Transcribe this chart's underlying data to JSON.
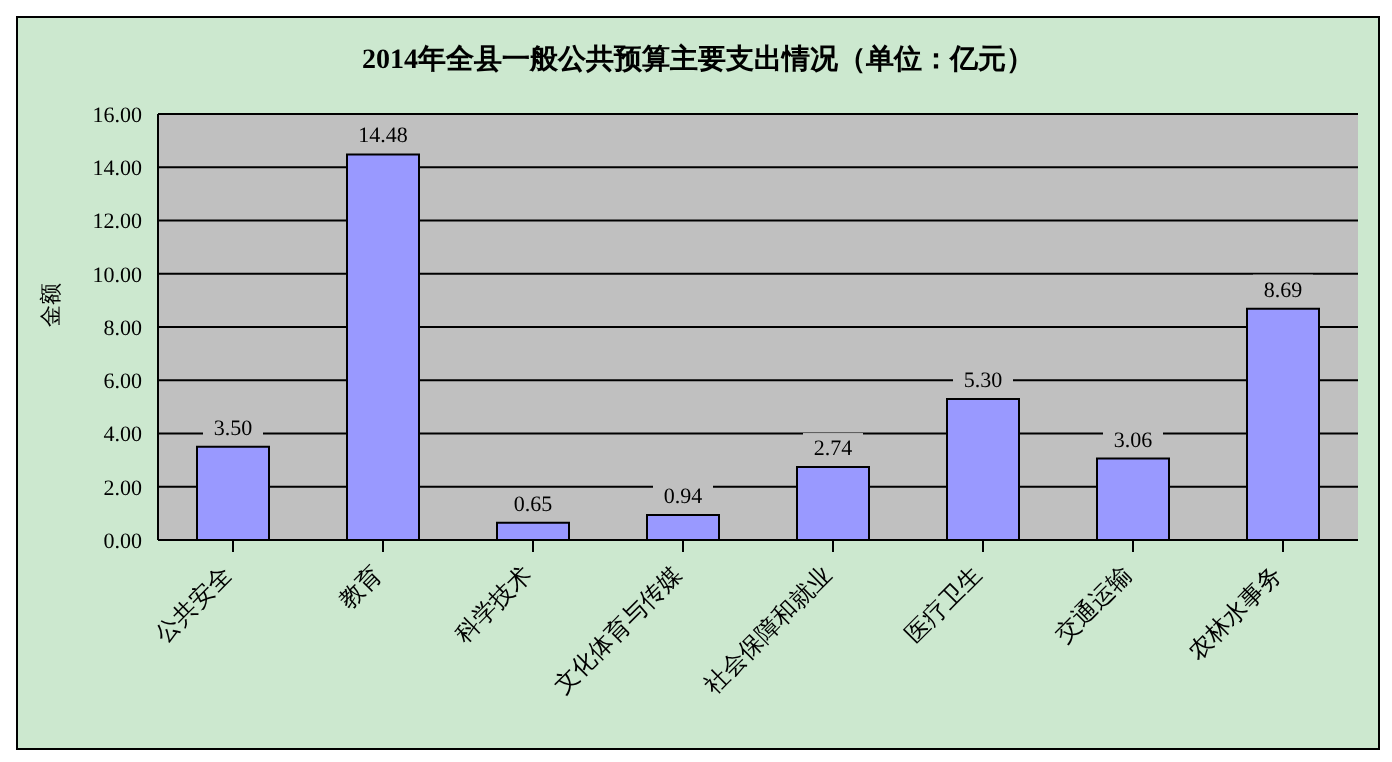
{
  "chart_data": {
    "type": "bar",
    "title": "2014年全县一般公共预算主要支出情况（单位：亿元）",
    "ylabel": "金额",
    "categories": [
      "公共安全",
      "教育",
      "科学技术",
      "文化体育与传媒",
      "社会保障和就业",
      "医疗卫生",
      "交通运输",
      "农林水事务"
    ],
    "values": [
      3.5,
      14.48,
      0.65,
      0.94,
      2.74,
      5.3,
      3.06,
      8.69
    ],
    "value_labels": [
      "3.50",
      "14.48",
      "0.65",
      "0.94",
      "2.74",
      "5.30",
      "3.06",
      "8.69"
    ],
    "color": "#9999ff",
    "ylim": [
      0,
      16
    ],
    "yticks": [
      {
        "value": 0,
        "label": "0.00"
      },
      {
        "value": 2,
        "label": "2.00"
      },
      {
        "value": 4,
        "label": "4.00"
      },
      {
        "value": 6,
        "label": "6.00"
      },
      {
        "value": 8,
        "label": "8.00"
      },
      {
        "value": 10,
        "label": "10.00"
      },
      {
        "value": 12,
        "label": "12.00"
      },
      {
        "value": 14,
        "label": "14.00"
      },
      {
        "value": 16,
        "label": "16.00"
      }
    ],
    "grid": "y",
    "legend": false
  }
}
